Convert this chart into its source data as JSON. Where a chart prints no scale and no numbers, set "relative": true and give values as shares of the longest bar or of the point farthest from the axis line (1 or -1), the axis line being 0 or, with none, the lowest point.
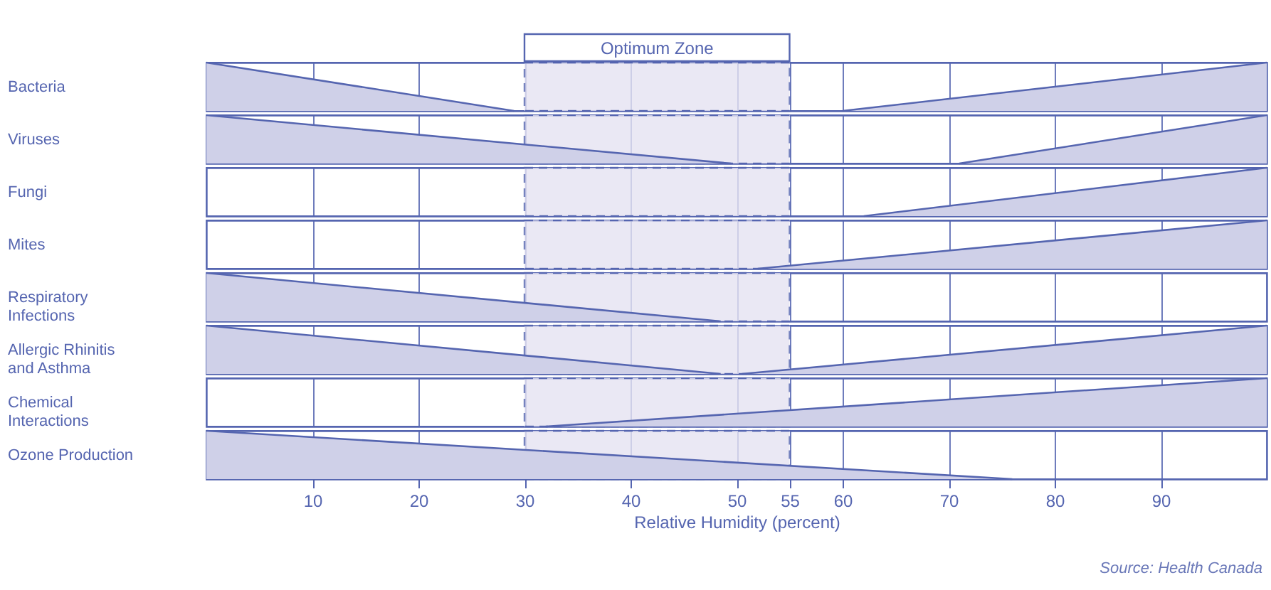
{
  "chart_data": [
    {
      "type": "area",
      "ylabel": "Bacteria",
      "relative": true,
      "xlim": [
        0,
        100
      ],
      "xticks": [
        10,
        20,
        30,
        40,
        50,
        55,
        60,
        70,
        80,
        90
      ],
      "grid": "x",
      "tick_labels": false,
      "bands": [
        {
          "axis": "x",
          "from": 30,
          "to": 55,
          "label": "Optimum Zone",
          "color": "#e5e3f2"
        }
      ],
      "series": [
        {
          "color": "#cfd0e8",
          "x": [
            0,
            29
          ],
          "values": [
            1,
            0
          ]
        },
        {
          "color": "#cfd0e8",
          "x": [
            60,
            100
          ],
          "values": [
            0,
            1
          ]
        }
      ]
    },
    {
      "type": "area",
      "ylabel": "Viruses",
      "relative": true,
      "xlim": [
        0,
        100
      ],
      "xticks": [
        10,
        20,
        30,
        40,
        50,
        55,
        60,
        70,
        80,
        90
      ],
      "grid": "x",
      "tick_labels": false,
      "bands": [
        {
          "axis": "x",
          "from": 30,
          "to": 55,
          "color": "#e5e3f2"
        }
      ],
      "series": [
        {
          "color": "#cfd0e8",
          "x": [
            0,
            49.5
          ],
          "values": [
            1,
            0
          ]
        },
        {
          "color": "#cfd0e8",
          "x": [
            71,
            100
          ],
          "values": [
            0,
            1
          ]
        }
      ]
    },
    {
      "type": "area",
      "ylabel": "Fungi",
      "relative": true,
      "xlim": [
        0,
        100
      ],
      "xticks": [
        10,
        20,
        30,
        40,
        50,
        55,
        60,
        70,
        80,
        90
      ],
      "grid": "x",
      "tick_labels": false,
      "bands": [
        {
          "axis": "x",
          "from": 30,
          "to": 55,
          "color": "#e5e3f2"
        }
      ],
      "series": [
        {
          "color": "#cfd0e8",
          "x": [
            62,
            100
          ],
          "values": [
            0,
            1
          ]
        }
      ]
    },
    {
      "type": "area",
      "ylabel": "Mites",
      "relative": true,
      "xlim": [
        0,
        100
      ],
      "xticks": [
        10,
        20,
        30,
        40,
        50,
        55,
        60,
        70,
        80,
        90
      ],
      "grid": "x",
      "tick_labels": false,
      "bands": [
        {
          "axis": "x",
          "from": 30,
          "to": 55,
          "color": "#e5e3f2"
        }
      ],
      "series": [
        {
          "color": "#cfd0e8",
          "x": [
            52,
            100
          ],
          "values": [
            0,
            1
          ]
        }
      ]
    },
    {
      "type": "area",
      "ylabel": "Respiratory Infections",
      "relative": true,
      "xlim": [
        0,
        100
      ],
      "xticks": [
        10,
        20,
        30,
        40,
        50,
        55,
        60,
        70,
        80,
        90
      ],
      "grid": "x",
      "tick_labels": false,
      "bands": [
        {
          "axis": "x",
          "from": 30,
          "to": 55,
          "color": "#e5e3f2"
        }
      ],
      "series": [
        {
          "color": "#cfd0e8",
          "x": [
            0,
            48.5
          ],
          "values": [
            1,
            0
          ]
        }
      ]
    },
    {
      "type": "area",
      "ylabel": "Allergic Rhinitis and Asthma",
      "relative": true,
      "xlim": [
        0,
        100
      ],
      "xticks": [
        10,
        20,
        30,
        40,
        50,
        55,
        60,
        70,
        80,
        90
      ],
      "grid": "x",
      "tick_labels": false,
      "bands": [
        {
          "axis": "x",
          "from": 30,
          "to": 55,
          "color": "#e5e3f2"
        }
      ],
      "series": [
        {
          "color": "#cfd0e8",
          "x": [
            0,
            48.5
          ],
          "values": [
            1,
            0
          ]
        },
        {
          "color": "#cfd0e8",
          "x": [
            50.5,
            100
          ],
          "values": [
            0,
            1
          ]
        }
      ]
    },
    {
      "type": "area",
      "ylabel": "Chemical Interactions",
      "relative": true,
      "xlim": [
        0,
        100
      ],
      "xticks": [
        10,
        20,
        30,
        40,
        50,
        55,
        60,
        70,
        80,
        90
      ],
      "grid": "x",
      "tick_labels": false,
      "bands": [
        {
          "axis": "x",
          "from": 30,
          "to": 55,
          "color": "#e5e3f2"
        }
      ],
      "series": [
        {
          "color": "#cfd0e8",
          "x": [
            32,
            100
          ],
          "values": [
            0,
            1
          ]
        }
      ]
    },
    {
      "type": "area",
      "ylabel": "Ozone Production",
      "xlabel": "Relative Humidity (percent)",
      "relative": true,
      "xlim": [
        0,
        100
      ],
      "xticks": [
        10,
        20,
        30,
        40,
        50,
        55,
        60,
        70,
        80,
        90
      ],
      "grid": "x",
      "tick_labels": "x",
      "annotations": [
        "Source: Health Canada"
      ],
      "bands": [
        {
          "axis": "x",
          "from": 30,
          "to": 55,
          "color": "#e5e3f2"
        }
      ],
      "series": [
        {
          "color": "#cfd0e8",
          "x": [
            0,
            76
          ],
          "values": [
            1,
            0
          ]
        }
      ]
    }
  ]
}
